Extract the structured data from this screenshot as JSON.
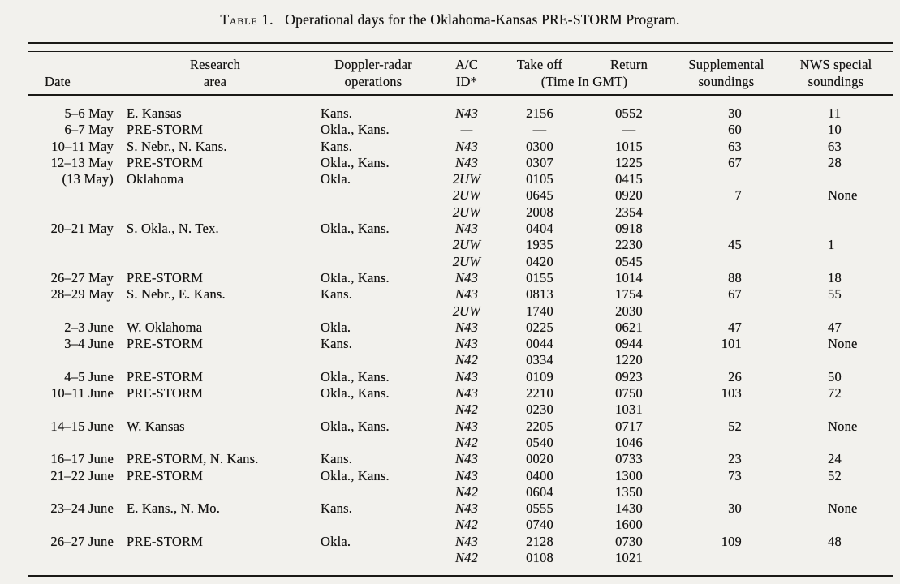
{
  "page": {
    "background_color": "#f2f1ed",
    "text_color": "#161514",
    "rule_color": "#1a1916"
  },
  "title": {
    "label": "Table 1.",
    "caption": "Operational days for the Oklahoma-Kansas PRE-STORM Program."
  },
  "table": {
    "headers": {
      "date": "Date",
      "research_line1": "Research",
      "research_line2": "area",
      "doppler_line1": "Doppler-radar",
      "doppler_line2": "operations",
      "ac_line1": "A/C",
      "ac_line2": "ID*",
      "takeoff": "Take off",
      "return": "Return",
      "time_note": "(Time In GMT)",
      "suppl_line1": "Supplemental",
      "suppl_line2": "soundings",
      "nws_line1": "NWS special",
      "nws_line2": "soundings"
    },
    "rows": [
      {
        "date": "5–6 May",
        "area": "E. Kansas",
        "doppler": "Kans.",
        "ac": "N43",
        "takeoff": "2156",
        "ret": "0552",
        "suppl": "30",
        "nws": "11"
      },
      {
        "date": "6–7 May",
        "area": "PRE-STORM",
        "doppler": "Okla., Kans.",
        "ac": "—",
        "takeoff": "—",
        "ret": "—",
        "suppl": "60",
        "nws": "10"
      },
      {
        "date": "10–11 May",
        "area": "S. Nebr., N. Kans.",
        "doppler": "Kans.",
        "ac": "N43",
        "takeoff": "0300",
        "ret": "1015",
        "suppl": "63",
        "nws": "63"
      },
      {
        "date": "12–13 May",
        "area": "PRE-STORM",
        "doppler": "Okla., Kans.",
        "ac": "N43",
        "takeoff": "0307",
        "ret": "1225",
        "suppl": "67",
        "nws": "28"
      },
      {
        "date": "(13 May)",
        "area": "Oklahoma",
        "doppler": "Okla.",
        "ac": "2UW",
        "takeoff": "0105",
        "ret": "0415",
        "suppl": "",
        "nws": ""
      },
      {
        "date": "",
        "area": "",
        "doppler": "",
        "ac": "2UW",
        "takeoff": "0645",
        "ret": "0920",
        "suppl": "7",
        "nws": "None"
      },
      {
        "date": "",
        "area": "",
        "doppler": "",
        "ac": "2UW",
        "takeoff": "2008",
        "ret": "2354",
        "suppl": "",
        "nws": ""
      },
      {
        "date": "20–21 May",
        "area": "S. Okla., N. Tex.",
        "doppler": "Okla., Kans.",
        "ac": "N43",
        "takeoff": "0404",
        "ret": "0918",
        "suppl": "",
        "nws": ""
      },
      {
        "date": "",
        "area": "",
        "doppler": "",
        "ac": "2UW",
        "takeoff": "1935",
        "ret": "2230",
        "suppl": "45",
        "nws": "1"
      },
      {
        "date": "",
        "area": "",
        "doppler": "",
        "ac": "2UW",
        "takeoff": "0420",
        "ret": "0545",
        "suppl": "",
        "nws": ""
      },
      {
        "date": "26–27 May",
        "area": "PRE-STORM",
        "doppler": "Okla., Kans.",
        "ac": "N43",
        "takeoff": "0155",
        "ret": "1014",
        "suppl": "88",
        "nws": "18"
      },
      {
        "date": "28–29 May",
        "area": "S. Nebr., E. Kans.",
        "doppler": "Kans.",
        "ac": "N43",
        "takeoff": "0813",
        "ret": "1754",
        "suppl": "67",
        "nws": "55"
      },
      {
        "date": "",
        "area": "",
        "doppler": "",
        "ac": "2UW",
        "takeoff": "1740",
        "ret": "2030",
        "suppl": "",
        "nws": ""
      },
      {
        "date": "2–3 June",
        "area": "W. Oklahoma",
        "doppler": "Okla.",
        "ac": "N43",
        "takeoff": "0225",
        "ret": "0621",
        "suppl": "47",
        "nws": "47"
      },
      {
        "date": "3–4 June",
        "area": "PRE-STORM",
        "doppler": "Kans.",
        "ac": "N43",
        "takeoff": "0044",
        "ret": "0944",
        "suppl": "101",
        "nws": "None"
      },
      {
        "date": "",
        "area": "",
        "doppler": "",
        "ac": "N42",
        "takeoff": "0334",
        "ret": "1220",
        "suppl": "",
        "nws": ""
      },
      {
        "date": "4–5 June",
        "area": "PRE-STORM",
        "doppler": "Okla., Kans.",
        "ac": "N43",
        "takeoff": "0109",
        "ret": "0923",
        "suppl": "26",
        "nws": "50"
      },
      {
        "date": "10–11 June",
        "area": "PRE-STORM",
        "doppler": "Okla., Kans.",
        "ac": "N43",
        "takeoff": "2210",
        "ret": "0750",
        "suppl": "103",
        "nws": "72"
      },
      {
        "date": "",
        "area": "",
        "doppler": "",
        "ac": "N42",
        "takeoff": "0230",
        "ret": "1031",
        "suppl": "",
        "nws": ""
      },
      {
        "date": "14–15 June",
        "area": "W. Kansas",
        "doppler": "Okla., Kans.",
        "ac": "N43",
        "takeoff": "2205",
        "ret": "0717",
        "suppl": "52",
        "nws": "None"
      },
      {
        "date": "",
        "area": "",
        "doppler": "",
        "ac": "N42",
        "takeoff": "0540",
        "ret": "1046",
        "suppl": "",
        "nws": ""
      },
      {
        "date": "16–17 June",
        "area": "PRE-STORM, N. Kans.",
        "doppler": "Kans.",
        "ac": "N43",
        "takeoff": "0020",
        "ret": "0733",
        "suppl": "23",
        "nws": "24"
      },
      {
        "date": "21–22 June",
        "area": "PRE-STORM",
        "doppler": "Okla., Kans.",
        "ac": "N43",
        "takeoff": "0400",
        "ret": "1300",
        "suppl": "73",
        "nws": "52"
      },
      {
        "date": "",
        "area": "",
        "doppler": "",
        "ac": "N42",
        "takeoff": "0604",
        "ret": "1350",
        "suppl": "",
        "nws": ""
      },
      {
        "date": "23–24 June",
        "area": "E. Kans., N. Mo.",
        "doppler": "Kans.",
        "ac": "N43",
        "takeoff": "0555",
        "ret": "1430",
        "suppl": "30",
        "nws": "None"
      },
      {
        "date": "",
        "area": "",
        "doppler": "",
        "ac": "N42",
        "takeoff": "0740",
        "ret": "1600",
        "suppl": "",
        "nws": ""
      },
      {
        "date": "26–27 June",
        "area": "PRE-STORM",
        "doppler": "Okla.",
        "ac": "N43",
        "takeoff": "2128",
        "ret": "0730",
        "suppl": "109",
        "nws": "48"
      },
      {
        "date": "",
        "area": "",
        "doppler": "",
        "ac": "N42",
        "takeoff": "0108",
        "ret": "1021",
        "suppl": "",
        "nws": ""
      }
    ]
  }
}
